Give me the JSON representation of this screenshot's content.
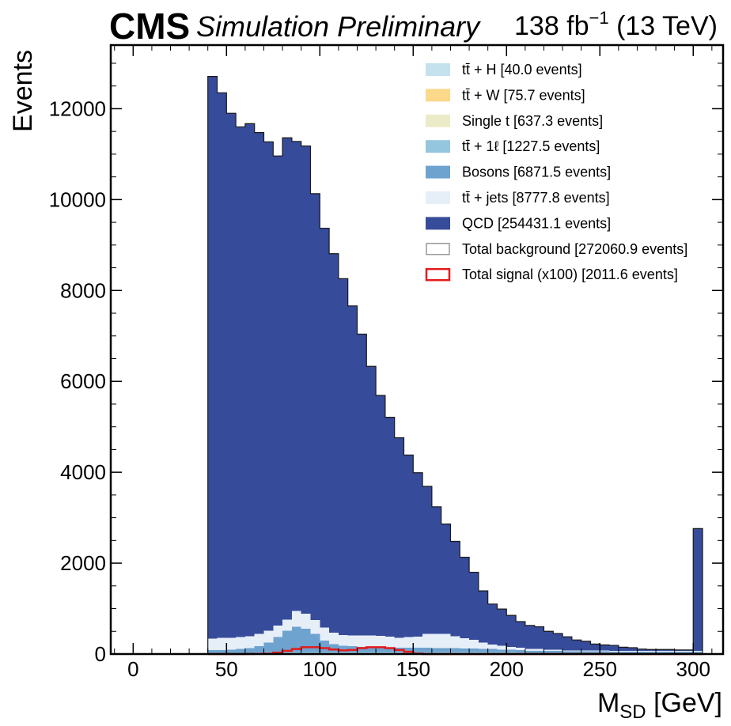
{
  "header": {
    "cms": "CMS",
    "simulation": "Simulation Preliminary",
    "lumi_value": "138 fb",
    "lumi_exp": "−1",
    "energy": " (13 TeV)"
  },
  "chart_data": {
    "type": "bar",
    "stacked": true,
    "histogram": true,
    "title": "",
    "xlabel_main": "M",
    "xlabel_sub": "SD",
    "xlabel_unit": " [GeV]",
    "ylabel": "Events",
    "xlim": [
      -12,
      316
    ],
    "ylim": [
      0,
      13400
    ],
    "xticks": [
      0,
      50,
      100,
      150,
      200,
      250,
      300
    ],
    "yticks": [
      0,
      2000,
      4000,
      6000,
      8000,
      10000,
      12000
    ],
    "bin_width": 5,
    "bin_edges_start": 40,
    "bin_edges_end": 305,
    "legend_position": "top-right",
    "legend": [
      {
        "label": "tt̄ + H [40.0 events]",
        "color": "#c3e2ee",
        "style": "fill"
      },
      {
        "label": "tt̄ + W [75.7 events]",
        "color": "#fbd88a",
        "style": "fill"
      },
      {
        "label": "Single t [637.3 events]",
        "color": "#ebebc8",
        "style": "fill"
      },
      {
        "label": "tt̄ + 1ℓ [1227.5 events]",
        "color": "#94c6df",
        "style": "fill"
      },
      {
        "label": "Bosons [6871.5 events]",
        "color": "#6ea3cf",
        "style": "fill"
      },
      {
        "label": "tt̄ + jets [8777.8 events]",
        "color": "#e6eef8",
        "style": "fill"
      },
      {
        "label": "QCD [254431.1 events]",
        "color": "#364b9a",
        "style": "fill"
      },
      {
        "label": "Total background [272060.9 events]",
        "color": "#808080",
        "style": "outline"
      },
      {
        "label": "Total signal (x100) [2011.6 events]",
        "color": "#e41a1c",
        "style": "outline"
      }
    ],
    "series": [
      {
        "name": "tt̄ + H",
        "color": "#c3e2ee",
        "values": [
          0,
          0,
          0,
          0,
          0,
          0,
          0,
          0,
          0,
          0,
          0,
          0,
          0,
          0,
          0,
          0,
          0,
          0,
          0,
          0,
          0,
          0,
          0,
          0,
          0,
          0,
          0,
          0,
          0,
          0,
          0,
          0,
          0,
          0,
          0,
          0,
          0,
          0,
          0,
          0,
          0,
          0,
          0,
          0,
          0,
          0,
          0,
          0,
          0,
          0,
          0,
          0,
          0
        ]
      },
      {
        "name": "tt̄ + W",
        "color": "#fbd88a",
        "values": [
          0,
          0,
          0,
          0,
          0,
          0,
          0,
          0,
          0,
          0,
          0,
          0,
          0,
          0,
          0,
          0,
          0,
          0,
          0,
          0,
          0,
          0,
          0,
          0,
          0,
          0,
          0,
          0,
          0,
          0,
          0,
          0,
          0,
          0,
          0,
          0,
          0,
          0,
          0,
          0,
          0,
          0,
          0,
          0,
          0,
          0,
          0,
          0,
          0,
          0,
          0,
          0,
          0
        ]
      },
      {
        "name": "Single t",
        "color": "#ebebc8",
        "values": [
          0,
          0,
          0,
          0,
          0,
          0,
          0,
          0,
          0,
          0,
          0,
          0,
          0,
          0,
          0,
          0,
          0,
          0,
          0,
          0,
          0,
          0,
          0,
          0,
          0,
          0,
          0,
          0,
          0,
          0,
          0,
          0,
          0,
          0,
          0,
          0,
          0,
          0,
          0,
          0,
          0,
          0,
          0,
          0,
          0,
          0,
          0,
          0,
          0,
          0,
          0,
          0,
          0
        ]
      },
      {
        "name": "tt̄ + 1ℓ",
        "color": "#94c6df",
        "values": [
          30,
          30,
          30,
          30,
          30,
          35,
          40,
          40,
          40,
          40,
          40,
          40,
          40,
          40,
          40,
          40,
          40,
          40,
          40,
          40,
          40,
          40,
          40,
          40,
          40,
          40,
          40,
          40,
          40,
          40,
          40,
          40,
          40,
          35,
          30,
          30,
          30,
          30,
          30,
          30,
          30,
          30,
          30,
          30,
          30,
          30,
          30,
          30,
          30,
          30,
          30,
          30,
          30
        ]
      },
      {
        "name": "Bosons",
        "color": "#6ea3cf",
        "values": [
          60,
          60,
          70,
          80,
          100,
          140,
          210,
          330,
          470,
          560,
          520,
          400,
          260,
          180,
          140,
          130,
          120,
          120,
          110,
          100,
          100,
          100,
          100,
          100,
          90,
          90,
          90,
          80,
          80,
          70,
          70,
          60,
          60,
          50,
          40,
          40,
          40,
          40,
          30,
          30,
          30,
          30,
          30,
          20,
          20,
          20,
          20,
          20,
          20,
          20,
          20,
          20,
          20
        ]
      },
      {
        "name": "tt̄ + jets",
        "color": "#e6eef8",
        "values": [
          250,
          270,
          260,
          260,
          260,
          270,
          260,
          260,
          250,
          350,
          330,
          310,
          280,
          250,
          240,
          240,
          250,
          250,
          250,
          240,
          220,
          230,
          240,
          300,
          310,
          310,
          260,
          230,
          190,
          140,
          100,
          80,
          60,
          50,
          40,
          40,
          30,
          30,
          20,
          20,
          20,
          20,
          20,
          20,
          20,
          20,
          20,
          20,
          20,
          20,
          20,
          20,
          20
        ]
      },
      {
        "name": "QCD",
        "color": "#364b9a",
        "values": [
          12370,
          11990,
          11540,
          11230,
          11280,
          11030,
          10760,
          10330,
          10600,
          10330,
          10290,
          9380,
          8790,
          8340,
          7840,
          7250,
          6630,
          5920,
          5290,
          4830,
          4400,
          4010,
          3610,
          3250,
          2800,
          2420,
          2090,
          1780,
          1490,
          1140,
          890,
          810,
          690,
          580,
          520,
          490,
          400,
          350,
          300,
          230,
          200,
          140,
          120,
          120,
          80,
          70,
          40,
          30,
          30,
          30,
          20,
          20,
          2690
        ]
      },
      {
        "name": "Total signal (x100)",
        "color": "#e41a1c",
        "style": "step-outline",
        "values": [
          0,
          0,
          0,
          0,
          2,
          4,
          8,
          30,
          70,
          110,
          150,
          150,
          130,
          100,
          80,
          90,
          130,
          150,
          150,
          130,
          90,
          50,
          10,
          0,
          0,
          0,
          0,
          0,
          0,
          0,
          0,
          0,
          0,
          0,
          0,
          0,
          0,
          0,
          0,
          0,
          0,
          0,
          0,
          0,
          0,
          0,
          0,
          0,
          0,
          0,
          0,
          0,
          0
        ]
      }
    ]
  }
}
